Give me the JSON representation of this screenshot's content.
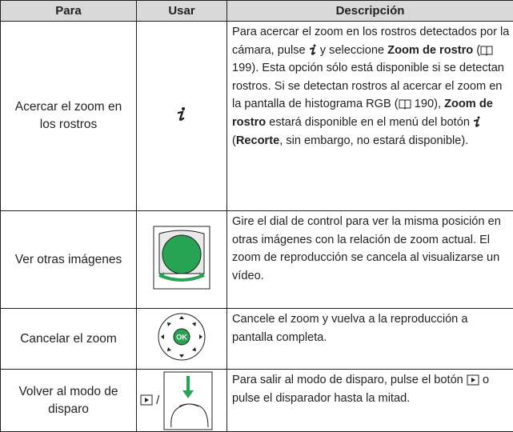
{
  "table": {
    "header": [
      "Para",
      "Usar",
      "Descripción"
    ],
    "rows": [
      {
        "para": "Acercar el zoom en los rostros",
        "description": [
          "Para acercar el zoom en los rostros detectados por la cámara, pulse",
          "y seleccione",
          "Zoom de rostro",
          "(",
          "199). Esta opción sólo está disponible si se detectan rostros. Si se detectan rostros al acercar el zoom en la pantalla de histograma RGB (",
          "190),",
          "Zoom de rostro",
          "estará disponible en el menú del botón",
          "(",
          "Recorte",
          ", sin embargo, no estará disponible)."
        ]
      },
      {
        "para": "Ver otras imágenes",
        "description": [
          "Gire el dial de control para ver la misma posición en otras imágenes con la relación de zoom actual.  El zoom de reproducción se cancela al visualizarse un vídeo."
        ]
      },
      {
        "para": "Cancelar el zoom",
        "usar_label": "OK",
        "description": [
          "Cancele el zoom y vuelva a la reproducción a pantalla completa."
        ]
      },
      {
        "para": "Volver al modo de disparo",
        "usar_separator": "/",
        "description": [
          "Para salir al modo de disparo, pulse el botón",
          "o pulse el disparador hasta la mitad."
        ]
      }
    ]
  }
}
